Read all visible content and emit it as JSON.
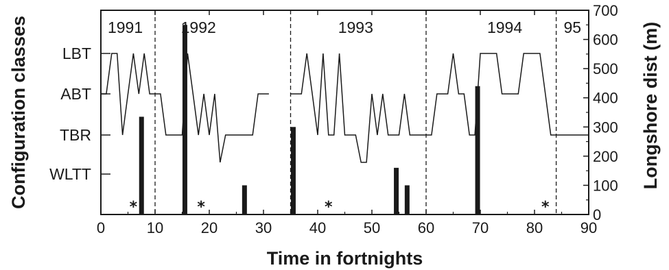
{
  "chart_data": {
    "type": "line",
    "xlabel": "Time in fortnights",
    "ylabel_left": "Configuration classes",
    "ylabel_right": "Longshore dist (m)",
    "xlim": [
      0,
      90
    ],
    "x_ticks": [
      "0",
      "10",
      "20",
      "30",
      "40",
      "50",
      "60",
      "70",
      "80",
      "90"
    ],
    "y_right_lim": [
      0,
      700
    ],
    "y_right_ticks": [
      "0",
      "100",
      "200",
      "300",
      "400",
      "500",
      "600",
      "700"
    ],
    "class_levels": [
      "WLTT",
      "TBR",
      "ABT",
      "LBT"
    ],
    "class_values": [
      1,
      2,
      3,
      4
    ],
    "years": [
      {
        "label": "1991",
        "x": 4.5
      },
      {
        "label": "1992",
        "x": 18
      },
      {
        "label": "1993",
        "x": 47
      },
      {
        "label": "1994",
        "x": 74.5
      },
      {
        "label": "95",
        "x": 87
      }
    ],
    "year_boundaries": [
      10,
      35,
      60,
      84
    ],
    "configuration_series": [
      {
        "x": [
          0,
          1,
          2,
          3,
          4,
          5,
          6,
          7,
          8,
          9,
          10,
          11,
          12,
          13,
          14,
          15,
          16,
          17,
          18,
          19,
          20,
          21,
          22,
          23,
          24,
          25,
          26,
          27,
          28,
          29,
          30,
          31
        ],
        "y": [
          3,
          3,
          4,
          4,
          2,
          3,
          4,
          3,
          4,
          3,
          3,
          3,
          2,
          2,
          2,
          2,
          4,
          3,
          2,
          3,
          2,
          3,
          1.3,
          2,
          2,
          2,
          2,
          2,
          2,
          3,
          3,
          3
        ]
      },
      {
        "x": [
          35,
          36,
          37,
          38,
          39,
          40,
          41,
          42,
          43,
          44,
          45,
          46,
          47,
          48,
          49,
          50,
          51,
          52,
          53,
          54,
          55,
          56,
          57,
          58,
          59,
          60,
          61,
          62,
          63,
          64,
          65,
          66,
          67,
          68,
          69,
          70,
          71,
          72,
          73,
          74,
          75,
          76,
          77,
          78,
          79,
          80,
          81,
          82,
          83,
          84,
          85,
          86,
          87,
          88,
          89,
          90
        ],
        "y": [
          3,
          3,
          3,
          4,
          3,
          2,
          4,
          2,
          2,
          4,
          2,
          2,
          2,
          1.3,
          1.3,
          3,
          2,
          3,
          2,
          2,
          2,
          3,
          2,
          2,
          2,
          2,
          2,
          3,
          3,
          3,
          4,
          3,
          3,
          2,
          2,
          4,
          4,
          4,
          4,
          3,
          3,
          3,
          3,
          4,
          4,
          4,
          4,
          3,
          2,
          2,
          2,
          2,
          2,
          2,
          2,
          2
        ]
      }
    ],
    "bars_longshore_m": [
      {
        "x": 7.5,
        "value": 335
      },
      {
        "x": 15.5,
        "value": 650
      },
      {
        "x": 26.5,
        "value": 100
      },
      {
        "x": 35.5,
        "value": 300
      },
      {
        "x": 54.5,
        "value": 160
      },
      {
        "x": 56.5,
        "value": 100
      },
      {
        "x": 69.5,
        "value": 440
      }
    ],
    "stars_x": [
      6,
      18.5,
      42,
      82
    ]
  }
}
